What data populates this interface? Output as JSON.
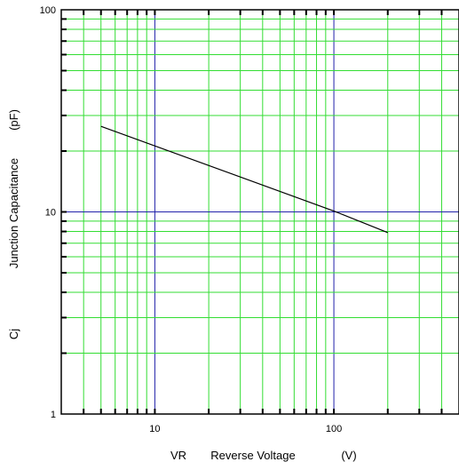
{
  "chart_data": {
    "type": "line",
    "x_scale": "log",
    "y_scale": "log",
    "xlim": [
      3,
      500
    ],
    "ylim": [
      1,
      100
    ],
    "x_tick_values": [
      10,
      100
    ],
    "x_tick_labels": [
      "10",
      "100"
    ],
    "y_tick_values": [
      1,
      10,
      100
    ],
    "y_tick_labels": [
      "1",
      "10",
      "100"
    ],
    "xlabel": {
      "symbol": "VR",
      "text": "Reverse Voltage",
      "unit": "(V)"
    },
    "ylabel": {
      "symbol": "Cj",
      "text": "Junction Capacitance",
      "unit": "(pF)"
    },
    "grid": true,
    "grid_color": "#33dd33",
    "decade_grid_color": "#2222aa",
    "line_color": "#000000",
    "series": [
      {
        "x": [
          5,
          100,
          200
        ],
        "y": [
          26.5,
          10.1,
          7.9
        ]
      }
    ]
  }
}
